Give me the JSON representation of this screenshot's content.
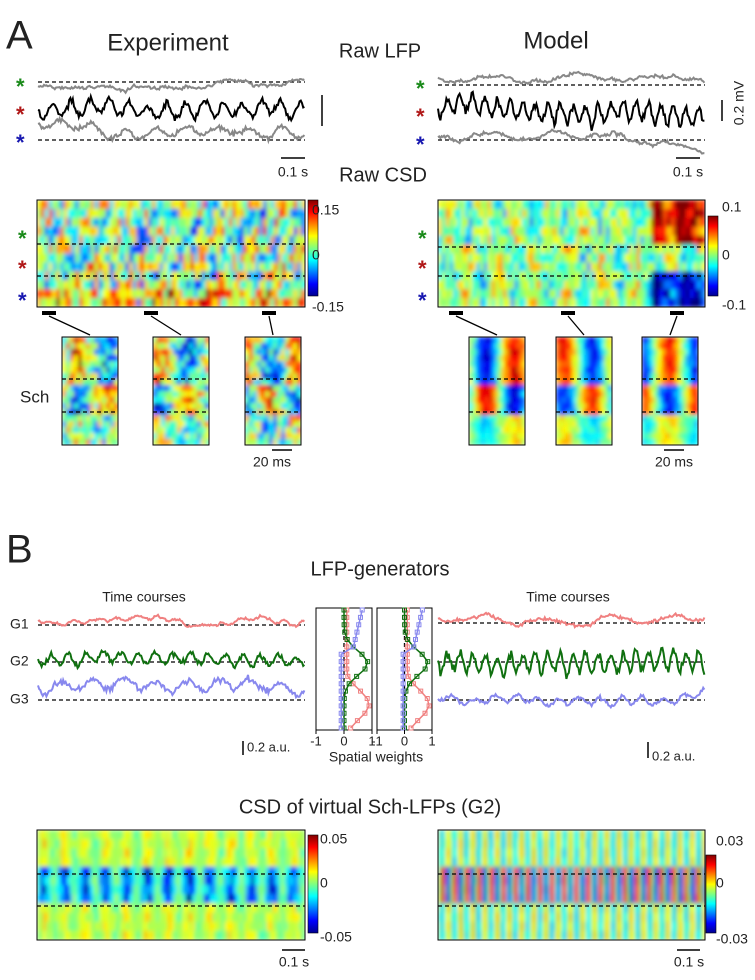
{
  "panel_a": {
    "label": "A",
    "titles": {
      "experiment": "Experiment",
      "model": "Model",
      "raw_lfp": "Raw LFP",
      "raw_csd": "Raw CSD"
    },
    "asterisk": "*",
    "lfp_scale": "0.2 mV",
    "time_scale": "0.1 s",
    "experiment_colorbar": [
      0.15,
      0,
      -0.15
    ],
    "model_colorbar": [
      0.1,
      0,
      -0.1
    ],
    "sch_label": "Sch",
    "zoom_scale": "20 ms"
  },
  "panel_b": {
    "label": "B",
    "title": "LFP-generators",
    "time_courses": "Time courses",
    "generators": [
      "G1",
      "G2",
      "G3"
    ],
    "amplitude_scale": "0.2 a.u.",
    "weight_ticks": [
      -1,
      0,
      1
    ],
    "weights_label": "Spatial weights",
    "csd_title": "CSD of virtual Sch-LFPs (G2)",
    "experiment_colorbar": [
      0.05,
      0,
      -0.05
    ],
    "model_colorbar": [
      0.03,
      0,
      -0.03
    ],
    "time_scale": "0.1 s"
  }
}
